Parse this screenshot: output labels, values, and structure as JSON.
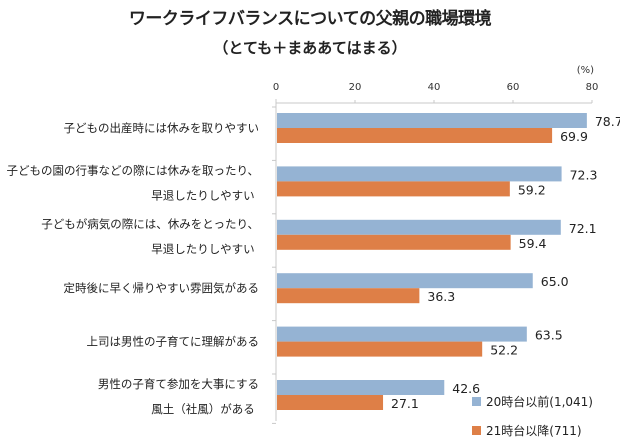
{
  "chart_data": {
    "type": "bar",
    "orientation": "horizontal",
    "title": "ワークライフバランスについての父親の職場環境",
    "subtitle": "（とても＋まああてはまる）",
    "unit_label": "(%)",
    "xlim": [
      0,
      80
    ],
    "ticks": [
      0,
      20,
      40,
      60,
      80
    ],
    "grid": false,
    "legend_position": "bottom-right",
    "categories": [
      [
        "子どもの出産時には休みを取りやすい"
      ],
      [
        "子どもの園の行事などの際には休みを取ったり、",
        "早退したりしやすい"
      ],
      [
        "子どもが病気の際には、休みをとったり、",
        "早退したりしやすい"
      ],
      [
        "定時後に早く帰りやすい雰囲気がある"
      ],
      [
        "上司は男性の子育てに理解がある"
      ],
      [
        "男性の子育て参加を大事にする",
        "風土（社風）がある"
      ]
    ],
    "series": [
      {
        "name": "20時台以前(1,041)",
        "color": "#95b3d3",
        "values": [
          78.7,
          72.3,
          72.1,
          65.0,
          63.5,
          42.6
        ]
      },
      {
        "name": "21時台以降(711)",
        "color": "#de7f47",
        "values": [
          69.9,
          59.2,
          59.4,
          36.3,
          52.2,
          27.1
        ]
      }
    ]
  }
}
